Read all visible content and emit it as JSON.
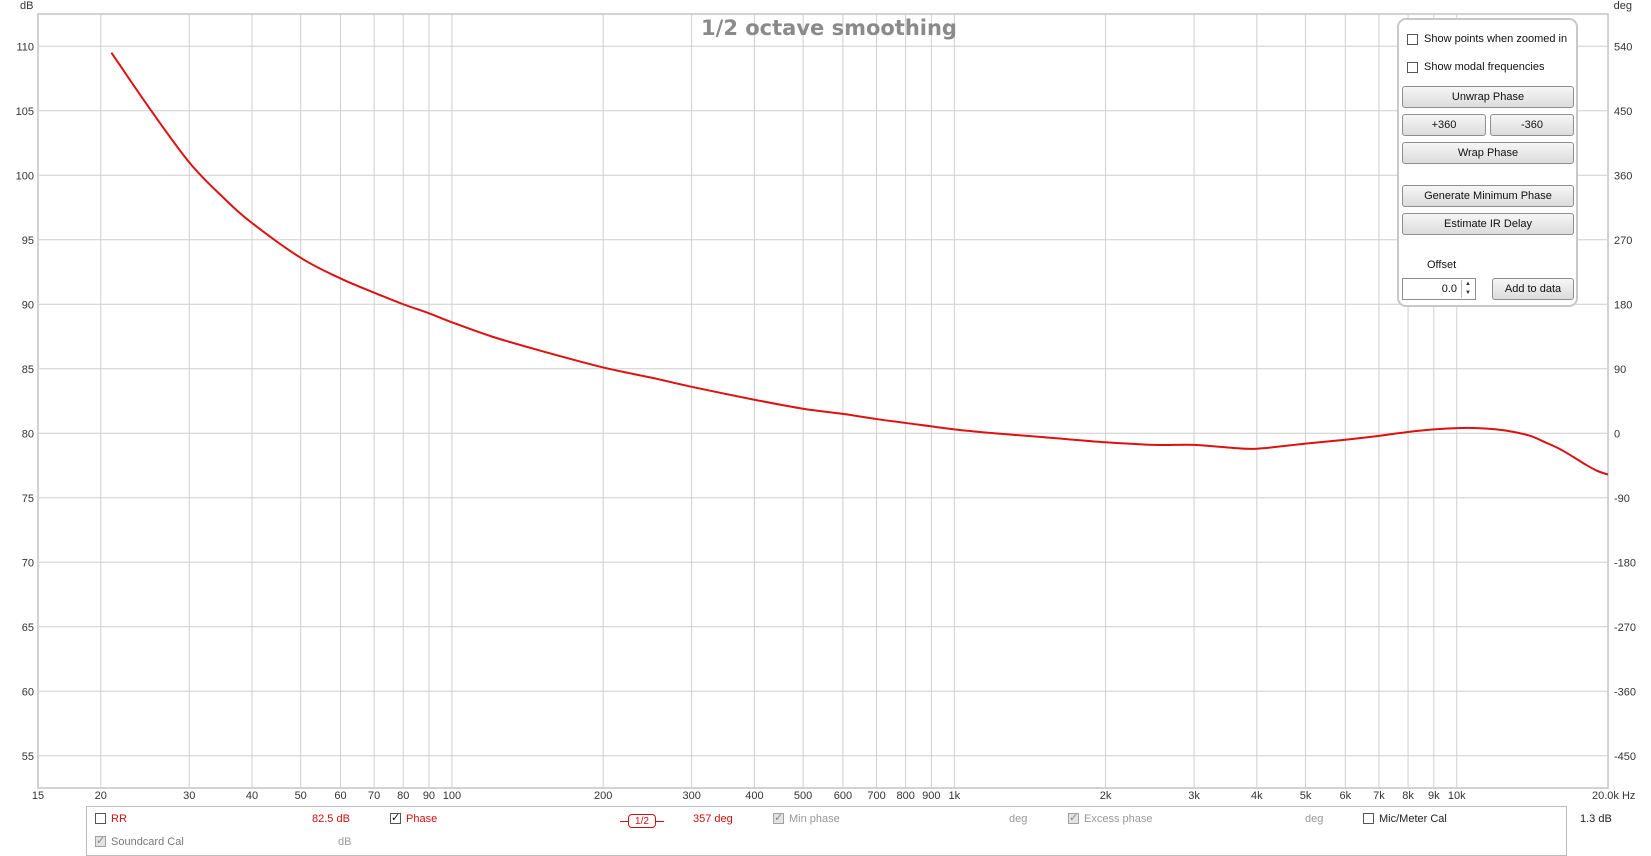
{
  "chart_data": {
    "type": "line",
    "title": "1/2 octave smoothing",
    "x_unit": "Hz",
    "y_unit_left": "dB",
    "y_unit_right": "deg",
    "xscale": "log",
    "xlim": [
      15,
      20000
    ],
    "ylim": [
      52.5,
      112.5
    ],
    "ylim_right": [
      -495,
      585
    ],
    "grid": true,
    "x_ticks": [
      {
        "v": 15,
        "label": "15"
      },
      {
        "v": 20,
        "label": "20"
      },
      {
        "v": 30,
        "label": "30"
      },
      {
        "v": 40,
        "label": "40"
      },
      {
        "v": 50,
        "label": "50"
      },
      {
        "v": 60,
        "label": "60"
      },
      {
        "v": 70,
        "label": "70"
      },
      {
        "v": 80,
        "label": "80"
      },
      {
        "v": 90,
        "label": "90"
      },
      {
        "v": 100,
        "label": "100"
      },
      {
        "v": 200,
        "label": "200"
      },
      {
        "v": 300,
        "label": "300"
      },
      {
        "v": 400,
        "label": "400"
      },
      {
        "v": 500,
        "label": "500"
      },
      {
        "v": 600,
        "label": "600"
      },
      {
        "v": 700,
        "label": "700"
      },
      {
        "v": 800,
        "label": "800"
      },
      {
        "v": 900,
        "label": "900"
      },
      {
        "v": 1000,
        "label": "1k"
      },
      {
        "v": 2000,
        "label": "2k"
      },
      {
        "v": 3000,
        "label": "3k"
      },
      {
        "v": 4000,
        "label": "4k"
      },
      {
        "v": 5000,
        "label": "5k"
      },
      {
        "v": 6000,
        "label": "6k"
      },
      {
        "v": 7000,
        "label": "7k"
      },
      {
        "v": 8000,
        "label": "8k"
      },
      {
        "v": 9000,
        "label": "9k"
      },
      {
        "v": 10000,
        "label": "10k"
      },
      {
        "v": 20000,
        "label": "20.0k Hz"
      }
    ],
    "y_ticks_left": [
      110,
      105,
      100,
      95,
      90,
      85,
      80,
      75,
      70,
      65,
      60,
      55
    ],
    "y_ticks_right": [
      540,
      450,
      360,
      270,
      180,
      90,
      0,
      -90,
      -180,
      -270,
      -360,
      -450
    ],
    "series": [
      {
        "name": "Phase",
        "color": "#dd1111",
        "x": [
          21,
          25,
          30,
          35,
          40,
          50,
          60,
          70,
          80,
          90,
          100,
          120,
          150,
          200,
          250,
          300,
          400,
          500,
          600,
          700,
          800,
          1000,
          1200,
          1500,
          2000,
          2500,
          3000,
          3500,
          4000,
          5000,
          6000,
          7000,
          8000,
          9000,
          10000,
          11000,
          12000,
          13000,
          14000,
          15000,
          16000,
          17000,
          18000,
          19000,
          20000
        ],
        "y": [
          109.5,
          105.2,
          101.0,
          98.3,
          96.3,
          93.6,
          92.0,
          90.9,
          90.0,
          89.3,
          88.6,
          87.5,
          86.4,
          85.1,
          84.3,
          83.6,
          82.6,
          81.9,
          81.5,
          81.1,
          80.8,
          80.3,
          80.0,
          79.7,
          79.3,
          79.1,
          79.1,
          78.9,
          78.8,
          79.2,
          79.5,
          79.8,
          80.1,
          80.3,
          80.4,
          80.4,
          80.3,
          80.1,
          79.8,
          79.3,
          78.8,
          78.2,
          77.6,
          77.1,
          76.8
        ]
      }
    ]
  },
  "panel": {
    "show_points_label": "Show points when zoomed in",
    "show_modal_label": "Show modal frequencies",
    "unwrap_label": "Unwrap Phase",
    "plus360_label": "+360",
    "minus360_label": "-360",
    "wrap_label": "Wrap Phase",
    "gen_min_phase_label": "Generate Minimum Phase",
    "estimate_delay_label": "Estimate IR Delay",
    "offset_label": "Offset",
    "offset_value": "0.0",
    "add_to_data_label": "Add to data"
  },
  "legend": {
    "rr_label": "RR",
    "rr_value": "82.5 dB",
    "phase_label": "Phase",
    "smoothing_badge": "1/2",
    "phase_value": "357 deg",
    "min_phase_label": "Min phase",
    "min_phase_unit": "deg",
    "excess_phase_label": "Excess phase",
    "excess_phase_unit": "deg",
    "mic_cal_label": "Mic/Meter Cal",
    "mic_cal_value": "1.3 dB",
    "soundcard_label": "Soundcard Cal",
    "soundcard_unit": "dB",
    "accent_color": "#d01010"
  }
}
